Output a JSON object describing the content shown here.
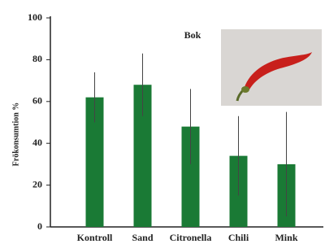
{
  "chart_data": {
    "type": "bar",
    "annotation": "Bok",
    "y_label": "Frökonsumtion %",
    "categories": [
      "Kontroll",
      "Sand",
      "Citronella",
      "Chili",
      "Mink"
    ],
    "values": [
      62,
      68,
      48,
      34,
      30
    ],
    "errors": [
      12,
      15,
      18,
      19,
      25
    ],
    "color": "#1a7a35",
    "error_color": "#444",
    "ylim": [
      0,
      100
    ],
    "yticks": [
      0,
      20,
      40,
      60,
      80,
      100
    ],
    "grid": false
  }
}
